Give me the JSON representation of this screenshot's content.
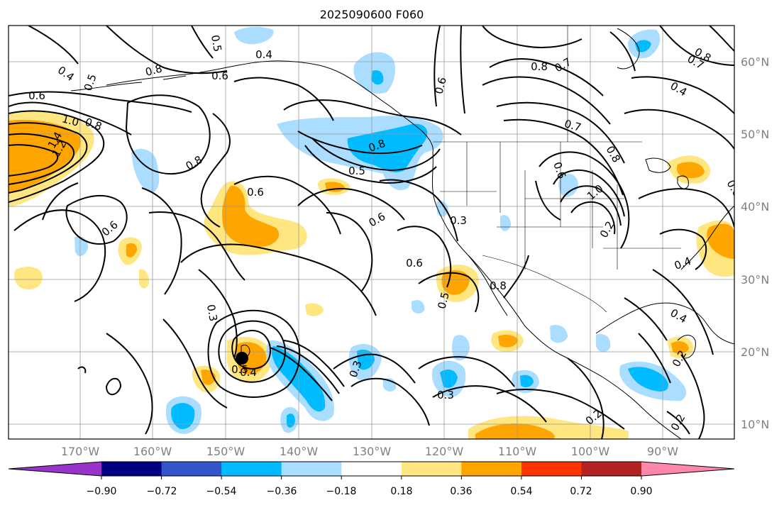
{
  "title": "2025090600 F060",
  "map": {
    "lon_ticks": [
      "170°W",
      "160°W",
      "150°W",
      "140°W",
      "130°W",
      "120°W",
      "110°W",
      "100°W",
      "90°W"
    ],
    "lat_ticks": [
      "60°N",
      "50°N",
      "40°N",
      "30°N",
      "20°N",
      "10°N"
    ],
    "grid": true,
    "marker": "black dot (storm center)"
  },
  "colorbar": {
    "ticks": [
      "−0.90",
      "−0.72",
      "−0.54",
      "−0.36",
      "−0.18",
      "0.18",
      "0.36",
      "0.54",
      "0.72",
      "0.90"
    ],
    "colors": [
      "#9933cc",
      "#000080",
      "#3355cc",
      "#00bbff",
      "#aaddff",
      "#ffffff",
      "#ffe680",
      "#ffa500",
      "#ff3300",
      "#b22222",
      "#ff88aa"
    ],
    "extend": "both"
  },
  "contour_labels": [
    "0.4",
    "0.5",
    "0.5",
    "0.4",
    "0.8",
    "0.6",
    "0.6",
    "1.0",
    "0.8",
    "1.2",
    "1.4",
    "0.8",
    "0.6",
    "0.8",
    "0.5",
    "0.6",
    "0.6",
    "0.6",
    "0.3",
    "0.6",
    "0.3",
    "0.5",
    "0.8",
    "0.3",
    "0.3",
    "0.5",
    "0.4",
    "0.6",
    "0.8",
    "0.7",
    "0.8",
    "0.7",
    "0.4",
    "0.7",
    "0.8",
    "0.6",
    "1.0",
    "0.2",
    "0.4",
    "0.4",
    "0.2",
    "0.2",
    "0.2"
  ]
}
